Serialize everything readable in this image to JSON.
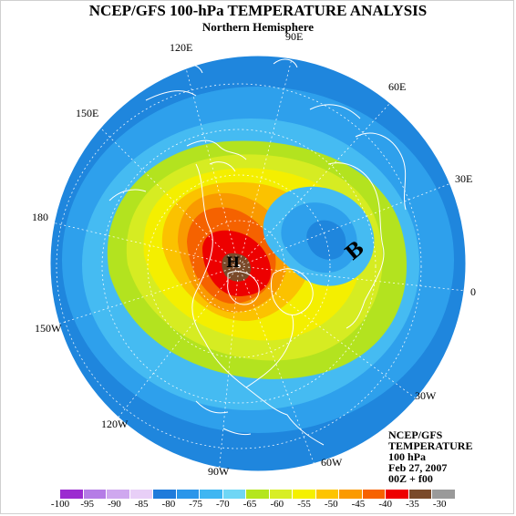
{
  "title": "NCEP/GFS 100-hPa TEMPERATURE ANALYSIS",
  "subtitle": "Northern Hemisphere",
  "longitude_labels": {
    "lon_120e": "120E",
    "lon_90e": "90E",
    "lon_60e": "60E",
    "lon_150e": "150E",
    "lon_30e": "30E",
    "lon_180": "180",
    "lon_0": "0",
    "lon_150w": "150W",
    "lon_30w": "30W",
    "lon_120w": "120W",
    "lon_60w": "60W",
    "lon_90w": "90W"
  },
  "markers": {
    "high": "H",
    "low": "B"
  },
  "info": {
    "line1": "NCEP/GFS",
    "line2": "TEMPERATURE",
    "line3": "100 hPa",
    "line4": "Feb 27, 2007",
    "line5": "00Z + f00"
  },
  "legend": {
    "bins": [
      {
        "color": "#9b2bd0"
      },
      {
        "color": "#b57ce6"
      },
      {
        "color": "#cfa8ef"
      },
      {
        "color": "#e8cff7"
      },
      {
        "color": "#1f7bdb"
      },
      {
        "color": "#2a96ea"
      },
      {
        "color": "#3fb6f2"
      },
      {
        "color": "#6fd6f5"
      },
      {
        "color": "#b4e61e"
      },
      {
        "color": "#d8ee25"
      },
      {
        "color": "#f5f000"
      },
      {
        "color": "#fdc400"
      },
      {
        "color": "#fb9a00"
      },
      {
        "color": "#f76200"
      },
      {
        "color": "#ee0000"
      },
      {
        "color": "#7a4a2a"
      },
      {
        "color": "#9a9a9a"
      }
    ],
    "labels": [
      "-100",
      "-95",
      "-90",
      "-85",
      "-80",
      "-75",
      "-70",
      "-65",
      "-60",
      "-55",
      "-50",
      "-45",
      "-40",
      "-35",
      "-30"
    ]
  }
}
